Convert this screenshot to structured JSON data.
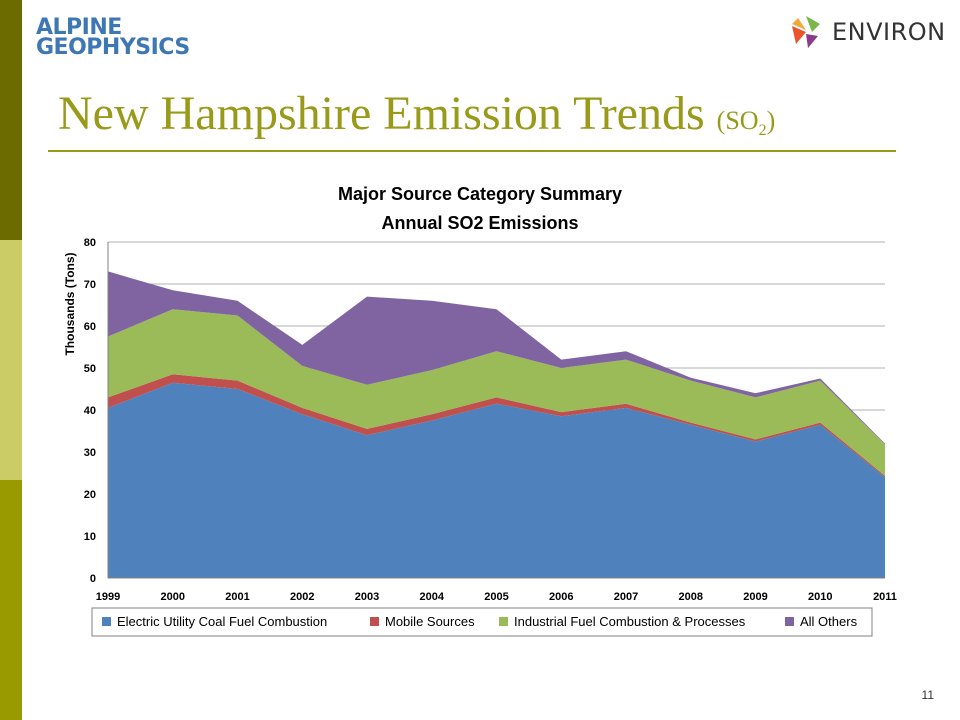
{
  "brand": {
    "left_logo_line1": "ALPINE",
    "left_logo_line2": "GEOPHYSICS",
    "right_logo": "ENVIRON"
  },
  "slide": {
    "title_main": "New Hampshire Emission Trends",
    "title_pollutant_open": "(SO",
    "title_pollutant_sub": "2",
    "title_pollutant_close": ")",
    "page_number": "11"
  },
  "colors": {
    "side_bar_dark": "#6b6b00",
    "side_bar_light": "#cccc66",
    "side_bar_mid": "#999900",
    "title": "#99991a"
  },
  "chart_data": {
    "type": "area",
    "stacked": true,
    "title": [
      "Major Source Category Summary",
      "Annual SO2 Emissions"
    ],
    "xlabel": "",
    "ylabel": "Thousands (Tons)",
    "ylim": [
      0,
      80
    ],
    "yticks": [
      0,
      10,
      20,
      30,
      40,
      50,
      60,
      70,
      80
    ],
    "grid": true,
    "legend_position": "bottom",
    "categories": [
      "1999",
      "2000",
      "2001",
      "2002",
      "2003",
      "2004",
      "2005",
      "2006",
      "2007",
      "2008",
      "2009",
      "2010",
      "2011"
    ],
    "series": [
      {
        "name": "Electric Utility Coal Fuel Combustion",
        "color": "#4f81bd",
        "values": [
          40.5,
          46.5,
          45,
          39,
          34,
          37.5,
          41.5,
          38.5,
          40.5,
          36.5,
          32.5,
          36.5,
          24
        ]
      },
      {
        "name": "Mobile Sources",
        "color": "#c0504d",
        "values": [
          2.5,
          2,
          2,
          1.5,
          1.5,
          1.5,
          1.5,
          1,
          1,
          0.5,
          0.5,
          0.5,
          0.3
        ]
      },
      {
        "name": "Industrial Fuel Combustion & Processes",
        "color": "#9bbb59",
        "values": [
          14.5,
          15.5,
          15.5,
          10,
          10.5,
          10.5,
          11,
          10.5,
          10.5,
          10,
          10,
          10,
          7.5
        ]
      },
      {
        "name": "All Others",
        "color": "#8064a2",
        "values": [
          15.5,
          4.5,
          3.5,
          5,
          21,
          16.5,
          10,
          2,
          2,
          0.7,
          1,
          0.5,
          0.2
        ]
      }
    ]
  }
}
